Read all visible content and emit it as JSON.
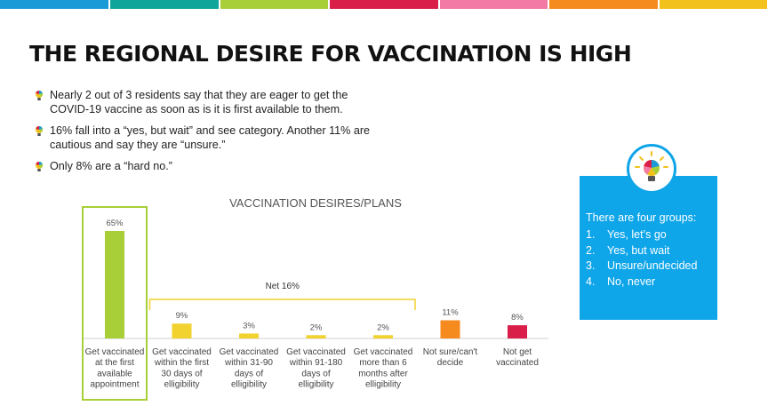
{
  "stripes": [
    "#1a9bd7",
    "#10a59a",
    "#a8cf38",
    "#d91e4a",
    "#f27aa5",
    "#f58a1f",
    "#f2c11c"
  ],
  "title": "THE REGIONAL DESIRE FOR VACCINATION IS HIGH",
  "bullets": [
    {
      "text": "Nearly 2 out of 3 residents say that they are eager to get the COVID-19 vaccine as soon as is it is first available to them."
    },
    {
      "text": "16% fall into a “yes, but wait” and see category.  Another 11% are cautious and say they are “unsure.”"
    },
    {
      "text": "Only 8% are a “hard no.”"
    }
  ],
  "chart_data": {
    "type": "bar",
    "title": "VACCINATION DESIRES/PLANS",
    "categories": [
      [
        "Get vaccinated",
        "at the first",
        "available",
        "appointment"
      ],
      [
        "Get vaccinated",
        "within the first",
        "30 days of",
        "elligibility"
      ],
      [
        "Get vaccinated",
        "within 31-90",
        "days of",
        "elligibility"
      ],
      [
        "Get vaccinated",
        "within 91-180",
        "days of",
        "elligibility"
      ],
      [
        "Get vaccinated",
        "more than 6",
        "months after",
        "elligibility"
      ],
      [
        "Not sure/can't",
        "decide"
      ],
      [
        "Not get",
        "vaccinated"
      ]
    ],
    "values": [
      65,
      9,
      3,
      2,
      2,
      11,
      8
    ],
    "value_labels": [
      "65%",
      "9%",
      "3%",
      "2%",
      "2%",
      "11%",
      "8%"
    ],
    "colors": [
      "#a8cf38",
      "#f2d22e",
      "#f2d22e",
      "#f2d22e",
      "#f2d22e",
      "#f58a1f",
      "#d91e4a"
    ],
    "highlight_index": 0,
    "bracket": {
      "label": "Net 16%",
      "from": 1,
      "to": 4
    },
    "ylim": [
      0,
      65
    ],
    "grid": false,
    "legend": "none"
  },
  "card": {
    "intro": "There are four groups:",
    "items": [
      {
        "num": "1.",
        "text": "Yes, let’s go"
      },
      {
        "num": "2.",
        "text": "Yes, but wait"
      },
      {
        "num": "3.",
        "text": "Unsure/undecided"
      },
      {
        "num": "4.",
        "text": "No, never"
      }
    ]
  },
  "icons": {
    "bullet": "lightbulb-icon",
    "card": "lightbulb-icon"
  }
}
